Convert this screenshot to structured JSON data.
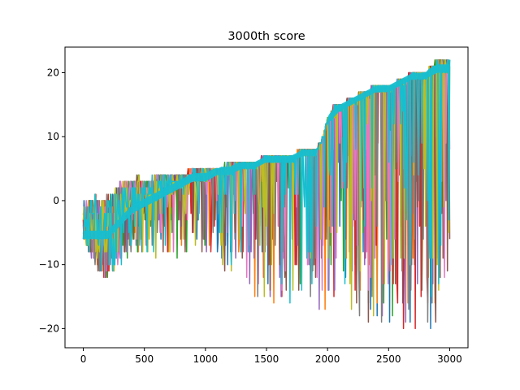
{
  "chart_data": {
    "type": "line",
    "title": "3000th score",
    "xlabel": "",
    "ylabel": "",
    "xlim": [
      -150,
      3150
    ],
    "ylim": [
      -23,
      24
    ],
    "xticks": [
      0,
      500,
      1000,
      1500,
      2000,
      2500,
      3000
    ],
    "yticks": [
      -20,
      -10,
      0,
      10,
      20
    ],
    "xtick_labels": [
      "0",
      "500",
      "1000",
      "1500",
      "2000",
      "2500",
      "3000"
    ],
    "ytick_labels": [
      "−20",
      "−10",
      "0",
      "10",
      "20"
    ],
    "grid": false,
    "legend": false,
    "description_series": {
      "upper_envelope": {
        "x": [
          0,
          100,
          150,
          250,
          300,
          400,
          450,
          500,
          600,
          700,
          800,
          900,
          1000,
          1100,
          1200,
          1300,
          1400,
          1500,
          1600,
          1700,
          1800,
          1900,
          1950,
          2000,
          2050,
          2100,
          2200,
          2300,
          2400,
          2500,
          2600,
          2700,
          2800,
          2850,
          2900,
          3000
        ],
        "y": [
          0,
          1,
          0,
          2,
          3,
          3,
          4,
          3,
          4,
          4,
          4,
          5,
          5,
          5,
          6,
          6,
          6,
          7,
          7,
          7,
          8,
          8,
          9,
          13,
          15,
          15,
          16,
          17,
          18,
          18,
          19,
          20,
          20,
          21,
          22,
          22
        ]
      },
      "lower_envelope": {
        "x": [
          0,
          100,
          150,
          200,
          250,
          300,
          400,
          500,
          600,
          700,
          800,
          900,
          1000,
          1100,
          1200,
          1300,
          1400,
          1500,
          1600,
          1700,
          1800,
          1900,
          2000,
          2100,
          2200,
          2300,
          2400,
          2500,
          2600,
          2700,
          2800,
          2900,
          3000
        ],
        "y": [
          -6,
          -10,
          -12,
          -12,
          -11,
          -10,
          -8,
          -9,
          -9,
          -9,
          -9,
          -8,
          -8,
          -10,
          -11,
          -13,
          -15,
          -16,
          -16,
          -16,
          -16,
          -17,
          -17,
          -18,
          -19,
          -19,
          -19,
          -20,
          -20,
          -21,
          -21,
          -21,
          -18
        ]
      },
      "band_floor": {
        "x": [
          0,
          100,
          200,
          300,
          400,
          500,
          600,
          700,
          800,
          900,
          1000,
          1100,
          1200,
          1300,
          1400,
          1500,
          1600,
          1700,
          1800,
          1900,
          2000,
          2100,
          2200,
          2300,
          2400,
          2500,
          2600,
          2700,
          2800,
          2900,
          3000
        ],
        "y": [
          -6,
          -6,
          -6,
          -4,
          -2,
          -1,
          0,
          1,
          2,
          3,
          3,
          4,
          4,
          5,
          5,
          6,
          6,
          6,
          7,
          7,
          12,
          14,
          15,
          16,
          17,
          17,
          18,
          19,
          19,
          20,
          20
        ]
      }
    },
    "series_colors": [
      "#1f77b4",
      "#ff7f0e",
      "#2ca02c",
      "#d62728",
      "#9467bd",
      "#8c564b",
      "#e377c2",
      "#7f7f7f",
      "#bcbd22",
      "#17becf"
    ]
  }
}
